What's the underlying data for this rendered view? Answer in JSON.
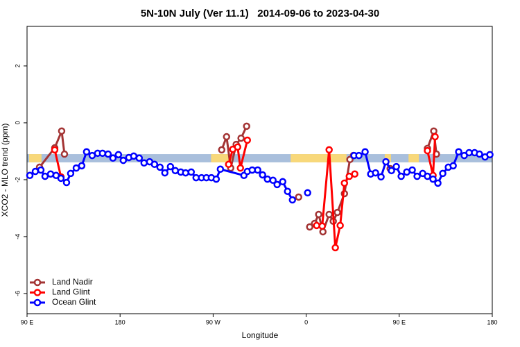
{
  "chart_data": {
    "type": "line",
    "title": "5N-10N July (Ver 11.1)   2014-09-06 to 2023-04-30",
    "xlabel": "Longitude",
    "ylabel": "XCO2 - MLO trend (ppm)",
    "xlim": [
      90,
      540
    ],
    "ylim": [
      -6.71,
      3.39
    ],
    "xticks": [
      {
        "value": 90,
        "label": "90 E"
      },
      180,
      {
        "value": 270,
        "label": "90 W"
      },
      {
        "value": 360,
        "label": "0"
      },
      {
        "value": 450,
        "label": "90 E"
      },
      {
        "value": 540,
        "label": "180"
      }
    ],
    "yticks": [
      -6,
      -4,
      -2,
      0,
      2
    ],
    "band": [
      -1.39,
      -1.1
    ],
    "band_color": "#a9bfdc",
    "land_color": "#f8d87a",
    "land_spans": [
      [
        92,
        104
      ],
      [
        268,
        288
      ],
      [
        345,
        399
      ],
      [
        436,
        442
      ],
      [
        459,
        469
      ]
    ],
    "legend": "lower left",
    "series": [
      {
        "name": "Land Nadir",
        "color": "#a33434",
        "x": [
          102.1,
          116.8,
          123.5,
          126.2,
          null,
          278.3,
          283.0,
          287.0,
          292.3,
          297.0,
          302.4,
          null,
          352.7,
          null,
          363.4,
          368.1,
          372.1,
          376.2,
          382.2,
          386.2,
          390.2,
          397.0,
          402.3,
          405.7,
          null,
          441.2,
          null,
          477.3,
          483.4,
          486.0
        ],
        "values": [
          -1.56,
          -0.88,
          -0.29,
          -1.1,
          null,
          -0.95,
          -0.49,
          -1.59,
          -0.76,
          -0.54,
          -0.12,
          null,
          -2.61,
          null,
          -3.66,
          -3.54,
          -3.22,
          -3.83,
          -3.22,
          -3.46,
          -3.15,
          -2.49,
          -1.29,
          -1.15,
          null,
          -1.61,
          null,
          -0.9,
          -0.29,
          -1.1
        ]
      },
      {
        "name": "Land Glint",
        "color": "#ff0000",
        "x": [
          116.8,
          122.8,
          null,
          285.0,
          289.0,
          293.7,
          296.4,
          303.1,
          null,
          370.1,
          375.5,
          382.2,
          388.2,
          392.9,
          397.0,
          401.7,
          407.0,
          null,
          477.3,
          482.7,
          484.7
        ],
        "values": [
          -0.95,
          -1.9,
          null,
          -1.46,
          -0.93,
          -0.85,
          -1.59,
          -0.61,
          null,
          -3.61,
          -3.63,
          -0.95,
          -4.39,
          -3.61,
          -2.12,
          -1.88,
          -1.8,
          null,
          -0.98,
          -1.85,
          -0.49
        ]
      },
      {
        "name": "Ocean Glint",
        "color": "#0000ff",
        "x": [
          92.7,
          98.0,
          103.4,
          107.4,
          112.8,
          118.1,
          122.8,
          128.2,
          132.2,
          137.6,
          142.9,
          147.6,
          153.0,
          158.3,
          163.0,
          168.4,
          173.1,
          178.4,
          183.1,
          188.5,
          193.2,
          198.5,
          203.2,
          208.6,
          213.3,
          218.6,
          223.3,
          228.7,
          233.4,
          238.7,
          243.4,
          248.8,
          253.5,
          258.8,
          263.5,
          268.3,
          273.0,
          277.0,
          299.8,
          303.1,
          307.8,
          313.1,
          317.8,
          322.5,
          327.9,
          331.9,
          337.3,
          342.0,
          346.7,
          null,
          361.4,
          null,
          406.3,
          411.0,
          417.0,
          422.4,
          427.1,
          432.4,
          437.1,
          442.5,
          447.2,
          451.9,
          457.3,
          462.6,
          467.3,
          472.7,
          477.3,
          482.7,
          487.4,
          492.1,
          497.5,
          502.2,
          507.5,
          512.9,
          517.6,
          522.9,
          527.6,
          533.0,
          537.7
        ],
        "values": [
          -1.85,
          -1.71,
          -1.66,
          -1.88,
          -1.8,
          -1.85,
          -1.95,
          -2.1,
          -1.78,
          -1.59,
          -1.51,
          -1.02,
          -1.15,
          -1.07,
          -1.07,
          -1.1,
          -1.24,
          -1.12,
          -1.32,
          -1.22,
          -1.17,
          -1.24,
          -1.41,
          -1.37,
          -1.46,
          -1.56,
          -1.76,
          -1.54,
          -1.68,
          -1.73,
          -1.76,
          -1.73,
          -1.93,
          -1.93,
          -1.93,
          -1.93,
          -1.98,
          -1.63,
          -1.85,
          -1.71,
          -1.66,
          -1.66,
          -1.83,
          -1.98,
          -2.02,
          -2.17,
          -2.07,
          -2.41,
          -2.71,
          null,
          -2.46,
          null,
          -1.15,
          -1.15,
          -1.02,
          -1.8,
          -1.76,
          -1.9,
          -1.37,
          -1.68,
          -1.54,
          -1.88,
          -1.73,
          -1.66,
          -1.88,
          -1.78,
          -1.88,
          -1.98,
          -2.12,
          -1.78,
          -1.56,
          -1.51,
          -1.02,
          -1.15,
          -1.05,
          -1.05,
          -1.1,
          -1.2,
          -1.12
        ]
      }
    ]
  }
}
